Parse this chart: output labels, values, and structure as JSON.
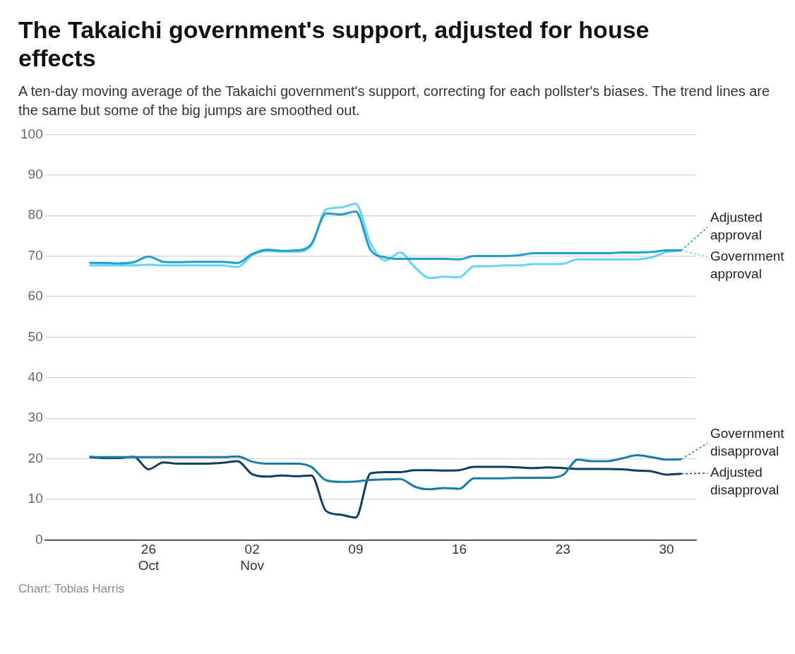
{
  "chart_data": {
    "type": "line",
    "title": "The Takaichi government's support, adjusted for house effects",
    "subtitle": "A ten-day moving average of the Takaichi government's support, correcting for each pollster's biases. The trend lines are the same but some of the big jumps are smoothed out.",
    "annotations": [
      "Chart: Tobias Harris"
    ],
    "x": [
      "--10-22",
      "--10-23",
      "--10-24",
      "--10-25",
      "--10-26",
      "--10-27",
      "--10-28",
      "--10-29",
      "--10-30",
      "--10-31",
      "--11-01",
      "--11-02",
      "--11-03",
      "--11-04",
      "--11-05",
      "--11-06",
      "--11-07",
      "--11-08",
      "--11-09",
      "--11-10",
      "--11-11",
      "--11-12",
      "--11-13",
      "--11-14",
      "--11-15",
      "--11-16",
      "--11-17",
      "--11-18",
      "--11-19",
      "--11-20",
      "--11-21",
      "--11-22",
      "--11-23",
      "--11-24",
      "--11-25",
      "--11-26",
      "--11-27",
      "--11-28",
      "--11-29",
      "--11-30",
      "--12-01"
    ],
    "xlim": [
      "--10-19",
      "--12-02"
    ],
    "xticks": [
      {
        "value": "--10-26",
        "label": "26\nOct"
      },
      {
        "value": "--11-02",
        "label": "02\nNov"
      },
      {
        "value": "--11-09",
        "label": "09"
      },
      {
        "value": "--11-16",
        "label": "16"
      },
      {
        "value": "--11-23",
        "label": "23"
      },
      {
        "value": "--11-30",
        "label": "30"
      }
    ],
    "ylim": [
      0,
      100
    ],
    "yticks": [
      0,
      10,
      20,
      30,
      40,
      50,
      60,
      70,
      80,
      90,
      100
    ],
    "grid": "y",
    "legend": "right",
    "line_style": "solid",
    "marker": "none",
    "series": [
      {
        "name": "Adjusted approval",
        "color": "#1f9fcc",
        "values": [
          68.3,
          68.3,
          68.2,
          68.5,
          69.9,
          68.6,
          68.5,
          68.6,
          68.6,
          68.6,
          68.3,
          70.5,
          71.6,
          71.3,
          71.4,
          73.0,
          80.5,
          80.3,
          81.0,
          71.5,
          69.7,
          69.3,
          69.3,
          69.3,
          69.3,
          69.2,
          70.0,
          70.0,
          70.0,
          70.2,
          70.7,
          70.7,
          70.7,
          70.7,
          70.7,
          70.7,
          70.9,
          70.9,
          71.0,
          71.4,
          71.4
        ]
      },
      {
        "name": "Government approval",
        "color": "#66d4f7",
        "values": [
          67.7,
          67.7,
          67.7,
          67.7,
          67.9,
          67.7,
          67.7,
          67.7,
          67.7,
          67.7,
          67.3,
          70.2,
          71.3,
          71.1,
          71.1,
          72.6,
          81.5,
          82.0,
          82.9,
          73.1,
          68.9,
          70.9,
          67.2,
          64.6,
          64.9,
          64.8,
          67.5,
          67.5,
          67.7,
          67.7,
          68.0,
          68.0,
          68.1,
          69.2,
          69.2,
          69.2,
          69.2,
          69.2,
          69.7,
          71.0,
          71.4
        ]
      },
      {
        "name": "Government disapproval",
        "color": "#1b7ca3",
        "values": [
          20.5,
          20.4,
          20.4,
          20.4,
          20.4,
          20.4,
          20.4,
          20.4,
          20.4,
          20.4,
          20.6,
          19.3,
          18.8,
          18.8,
          18.8,
          18.0,
          14.7,
          14.3,
          14.4,
          14.8,
          14.9,
          15.0,
          13.1,
          12.5,
          12.8,
          12.6,
          15.2,
          15.2,
          15.2,
          15.3,
          15.3,
          15.3,
          16.0,
          19.8,
          19.4,
          19.4,
          20.1,
          20.9,
          20.4,
          19.8,
          19.9
        ]
      },
      {
        "name": "Adjusted disapproval",
        "color": "#0c3f63",
        "values": [
          20.4,
          20.2,
          20.2,
          20.5,
          17.4,
          19.1,
          18.8,
          18.8,
          18.8,
          19.0,
          19.4,
          16.2,
          15.6,
          15.9,
          15.7,
          15.9,
          7.1,
          6.2,
          5.5,
          16.4,
          16.7,
          16.7,
          17.2,
          17.2,
          17.1,
          17.2,
          18.0,
          18.0,
          18.0,
          17.9,
          17.7,
          17.9,
          17.7,
          17.5,
          17.5,
          17.5,
          17.4,
          17.1,
          16.9,
          16.1,
          16.3
        ]
      }
    ]
  }
}
